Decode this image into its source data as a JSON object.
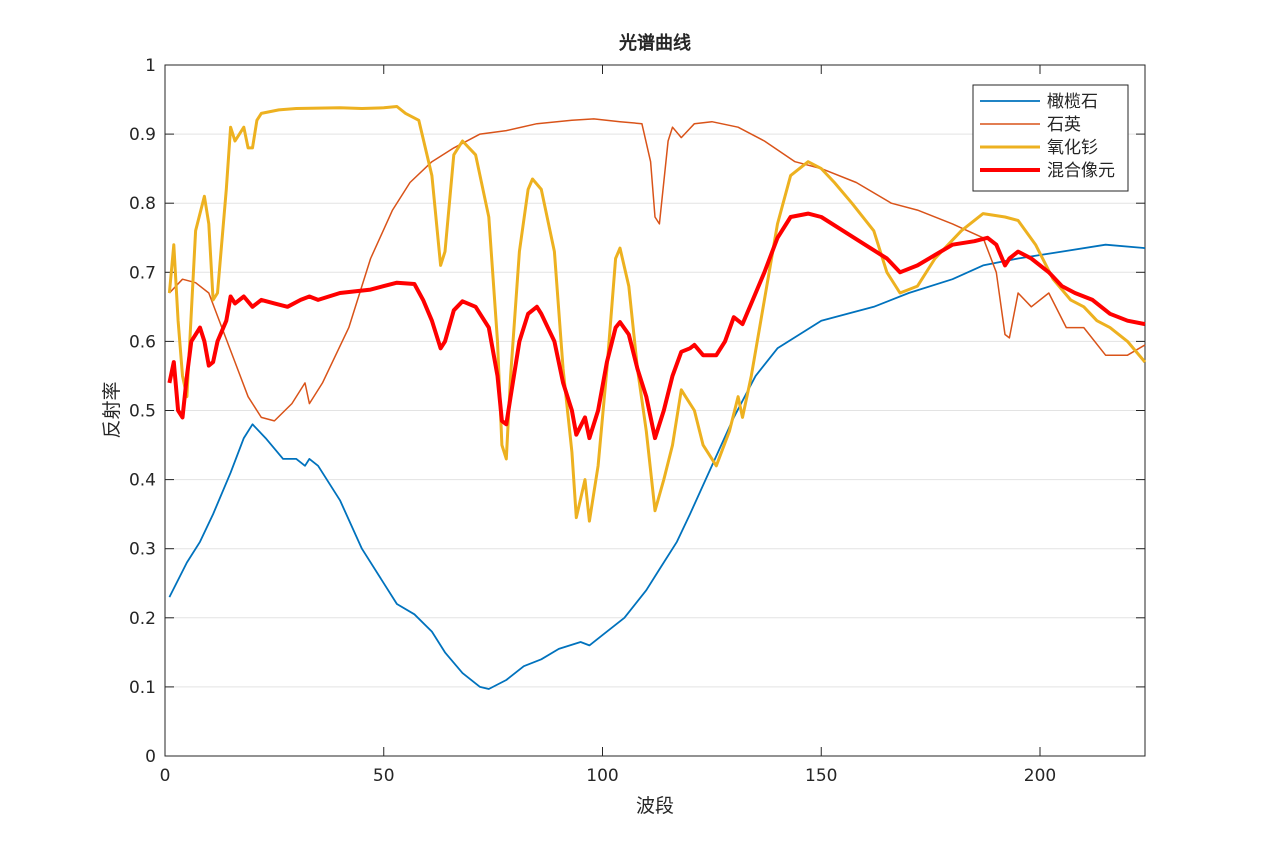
{
  "chart_data": {
    "type": "line",
    "title": "光谱曲线",
    "x_label": "波段",
    "y_label": "反射率",
    "xlim": [
      0,
      224
    ],
    "ylim": [
      0,
      1
    ],
    "xticks": [
      0,
      50,
      100,
      150,
      200
    ],
    "yticks": [
      0,
      0.1,
      0.2,
      0.3,
      0.4,
      0.5,
      0.6,
      0.7,
      0.8,
      0.9,
      1
    ],
    "grid": true,
    "legend": "upper right",
    "series": [
      {
        "name": "橄榄石",
        "color": "#0072bd",
        "x": [
          1,
          5,
          8,
          11,
          15,
          18,
          20,
          23,
          27,
          30,
          32,
          33,
          35,
          40,
          45,
          50,
          53,
          57,
          61,
          64,
          68,
          72,
          74,
          78,
          82,
          86,
          90,
          95,
          97,
          100,
          105,
          110,
          113,
          117,
          120,
          125,
          130,
          135,
          140,
          145,
          150,
          156,
          162,
          170,
          180,
          187,
          195,
          205,
          215,
          224
        ],
        "values": [
          0.23,
          0.28,
          0.31,
          0.35,
          0.41,
          0.46,
          0.48,
          0.46,
          0.43,
          0.43,
          0.42,
          0.43,
          0.42,
          0.37,
          0.3,
          0.25,
          0.22,
          0.205,
          0.18,
          0.15,
          0.12,
          0.1,
          0.097,
          0.11,
          0.13,
          0.14,
          0.155,
          0.165,
          0.16,
          0.175,
          0.2,
          0.24,
          0.27,
          0.31,
          0.35,
          0.42,
          0.49,
          0.55,
          0.59,
          0.61,
          0.63,
          0.64,
          0.65,
          0.67,
          0.69,
          0.71,
          0.72,
          0.73,
          0.74,
          0.735
        ]
      },
      {
        "name": "石英",
        "color": "#d95319",
        "x": [
          1,
          4,
          7,
          10,
          13,
          16,
          19,
          22,
          25,
          29,
          32,
          33,
          36,
          42,
          47,
          52,
          56,
          61,
          66,
          72,
          78,
          85,
          93,
          98,
          104,
          109,
          111,
          112,
          113,
          115,
          116,
          118,
          121,
          125,
          131,
          137,
          144,
          150,
          158,
          166,
          172,
          180,
          187,
          190,
          192,
          193,
          195,
          198,
          202,
          206,
          210,
          215,
          220,
          224
        ],
        "values": [
          0.67,
          0.69,
          0.685,
          0.67,
          0.62,
          0.57,
          0.52,
          0.49,
          0.485,
          0.51,
          0.54,
          0.51,
          0.54,
          0.62,
          0.72,
          0.79,
          0.83,
          0.86,
          0.88,
          0.9,
          0.905,
          0.915,
          0.92,
          0.922,
          0.918,
          0.915,
          0.86,
          0.78,
          0.77,
          0.89,
          0.91,
          0.895,
          0.915,
          0.918,
          0.91,
          0.89,
          0.86,
          0.85,
          0.83,
          0.8,
          0.79,
          0.77,
          0.75,
          0.7,
          0.61,
          0.605,
          0.67,
          0.65,
          0.67,
          0.62,
          0.62,
          0.58,
          0.58,
          0.595
        ]
      },
      {
        "name": "氧化钐",
        "color": "#edb120",
        "x": [
          1,
          2,
          3,
          4,
          5,
          7,
          9,
          10,
          11,
          12,
          14,
          15,
          16,
          18,
          19,
          20,
          21,
          22,
          26,
          30,
          40,
          45,
          50,
          53,
          55,
          58,
          61,
          63,
          64,
          66,
          68,
          71,
          74,
          76,
          77,
          78,
          79,
          81,
          83,
          84,
          86,
          89,
          91,
          93,
          94,
          96,
          97,
          99,
          101,
          103,
          104,
          106,
          108,
          110,
          112,
          114,
          116,
          118,
          119,
          121,
          123,
          126,
          129,
          131,
          132,
          134,
          137,
          140,
          143,
          147,
          150,
          153,
          157,
          162,
          165,
          168,
          172,
          176,
          182,
          187,
          192,
          195,
          199,
          203,
          207,
          210,
          213,
          216,
          220,
          224
        ],
        "values": [
          0.67,
          0.74,
          0.63,
          0.55,
          0.52,
          0.76,
          0.81,
          0.77,
          0.66,
          0.67,
          0.82,
          0.91,
          0.89,
          0.91,
          0.88,
          0.88,
          0.92,
          0.93,
          0.935,
          0.937,
          0.938,
          0.937,
          0.938,
          0.94,
          0.93,
          0.92,
          0.84,
          0.71,
          0.73,
          0.87,
          0.89,
          0.87,
          0.78,
          0.6,
          0.45,
          0.43,
          0.55,
          0.73,
          0.82,
          0.835,
          0.82,
          0.73,
          0.56,
          0.44,
          0.345,
          0.4,
          0.34,
          0.42,
          0.56,
          0.72,
          0.735,
          0.68,
          0.56,
          0.47,
          0.355,
          0.4,
          0.45,
          0.53,
          0.52,
          0.5,
          0.45,
          0.42,
          0.47,
          0.52,
          0.49,
          0.55,
          0.66,
          0.77,
          0.84,
          0.86,
          0.85,
          0.83,
          0.8,
          0.76,
          0.7,
          0.67,
          0.68,
          0.72,
          0.76,
          0.785,
          0.78,
          0.775,
          0.74,
          0.69,
          0.66,
          0.65,
          0.63,
          0.62,
          0.6,
          0.57
        ]
      },
      {
        "name": "混合像元",
        "color": "#ff0000",
        "x": [
          1,
          2,
          3,
          4,
          5,
          6,
          8,
          9,
          10,
          11,
          12,
          14,
          15,
          16,
          18,
          20,
          22,
          25,
          28,
          31,
          33,
          35,
          40,
          47,
          50,
          53,
          57,
          59,
          61,
          63,
          64,
          66,
          68,
          71,
          74,
          76,
          77,
          78,
          79,
          81,
          83,
          85,
          86,
          89,
          91,
          93,
          94,
          96,
          97,
          99,
          101,
          103,
          104,
          106,
          108,
          110,
          112,
          114,
          116,
          118,
          120,
          121,
          123,
          126,
          128,
          130,
          132,
          134,
          137,
          140,
          143,
          147,
          150,
          155,
          160,
          165,
          168,
          172,
          176,
          180,
          185,
          188,
          190,
          192,
          193,
          195,
          198,
          202,
          205,
          208,
          212,
          216,
          220,
          224
        ],
        "values": [
          0.54,
          0.57,
          0.5,
          0.49,
          0.55,
          0.6,
          0.62,
          0.6,
          0.565,
          0.57,
          0.6,
          0.63,
          0.665,
          0.655,
          0.665,
          0.65,
          0.66,
          0.655,
          0.65,
          0.66,
          0.665,
          0.66,
          0.67,
          0.675,
          0.68,
          0.685,
          0.683,
          0.66,
          0.63,
          0.59,
          0.6,
          0.645,
          0.658,
          0.65,
          0.62,
          0.55,
          0.485,
          0.48,
          0.52,
          0.6,
          0.64,
          0.65,
          0.64,
          0.6,
          0.54,
          0.5,
          0.465,
          0.49,
          0.46,
          0.5,
          0.57,
          0.62,
          0.628,
          0.61,
          0.56,
          0.52,
          0.46,
          0.5,
          0.55,
          0.585,
          0.59,
          0.595,
          0.58,
          0.58,
          0.6,
          0.635,
          0.625,
          0.655,
          0.7,
          0.75,
          0.78,
          0.785,
          0.78,
          0.76,
          0.74,
          0.72,
          0.7,
          0.71,
          0.725,
          0.74,
          0.745,
          0.75,
          0.74,
          0.71,
          0.72,
          0.73,
          0.72,
          0.7,
          0.68,
          0.67,
          0.66,
          0.64,
          0.63,
          0.625
        ]
      }
    ]
  }
}
